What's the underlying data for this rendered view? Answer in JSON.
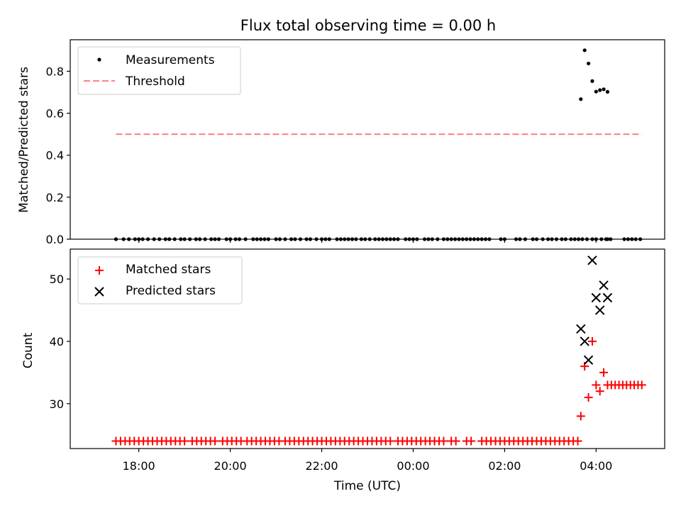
{
  "chart_data": [
    {
      "type": "scatter",
      "title": "Flux total observing time = 0.00 h",
      "xlabel": "",
      "ylabel": "Matched/Predicted stars",
      "ylim": [
        0,
        0.95
      ],
      "yticks": [
        "0.0",
        "0.2",
        "0.4",
        "0.6",
        "0.8"
      ],
      "ytick_values": [
        0,
        0.2,
        0.4,
        0.6,
        0.8
      ],
      "legend_position": "top-left",
      "series": [
        {
          "name": "Measurements",
          "marker": "dot",
          "color": "#000000",
          "x_minutes": [
            1050,
            1060,
            1067,
            1075,
            1080,
            1085,
            1092,
            1100,
            1107,
            1115,
            1120,
            1127,
            1135,
            1140,
            1147,
            1155,
            1160,
            1167,
            1175,
            1180,
            1185,
            1195,
            1200,
            1207,
            1212,
            1220,
            1230,
            1235,
            1240,
            1245,
            1250,
            1260,
            1265,
            1272,
            1280,
            1285,
            1292,
            1300,
            1305,
            1313,
            1320,
            1325,
            1330,
            1340,
            1345,
            1350,
            1355,
            1360,
            1365,
            1372,
            1377,
            1383,
            1390,
            1395,
            1400,
            1405,
            1410,
            1415,
            1420,
            1430,
            1435,
            1440,
            1445,
            1455,
            1460,
            1465,
            1472,
            1480,
            1485,
            1490,
            1495,
            1500,
            1505,
            1510,
            1515,
            1520,
            1525,
            1530,
            1535,
            1540,
            1555,
            1560,
            1575,
            1580,
            1587,
            1597,
            1602,
            1610,
            1617,
            1622,
            1628,
            1635,
            1640,
            1647,
            1652,
            1657,
            1662,
            1668,
            1675,
            1680,
            1687,
            1693,
            1695,
            1699,
            1717,
            1722,
            1727,
            1732,
            1738
          ],
          "y": [
            0,
            0,
            0,
            0,
            0,
            0,
            0,
            0,
            0,
            0,
            0,
            0,
            0,
            0,
            0,
            0,
            0,
            0,
            0,
            0,
            0,
            0,
            0,
            0,
            0,
            0,
            0,
            0,
            0,
            0,
            0,
            0,
            0,
            0,
            0,
            0,
            0,
            0,
            0,
            0,
            0,
            0,
            0,
            0,
            0,
            0,
            0,
            0,
            0,
            0,
            0,
            0,
            0,
            0,
            0,
            0,
            0,
            0,
            0,
            0,
            0,
            0,
            0,
            0,
            0,
            0,
            0,
            0,
            0,
            0,
            0,
            0,
            0,
            0,
            0,
            0,
            0,
            0,
            0,
            0,
            0,
            0,
            0,
            0,
            0,
            0,
            0,
            0,
            0,
            0,
            0,
            0,
            0,
            0,
            0,
            0,
            0,
            0,
            0,
            0,
            0,
            0,
            0,
            0,
            0,
            0,
            0,
            0,
            0
          ]
        },
        {
          "name": "Measurements",
          "marker": "dot",
          "color": "#000000",
          "x_minutes": [
            1660,
            1665,
            1670,
            1675,
            1680,
            1685,
            1690,
            1695
          ],
          "y": [
            0.667,
            0.9,
            0.837,
            0.753,
            0.703,
            0.71,
            0.714,
            0.702
          ]
        },
        {
          "name": "Threshold",
          "marker": "dashed-line",
          "color": "#ff7f7f",
          "x_minutes": [
            1050,
            1740
          ],
          "y": [
            0.5,
            0.5
          ]
        }
      ]
    },
    {
      "type": "scatter",
      "title": "",
      "xlabel": "Time (UTC)",
      "ylabel": "Count",
      "ylim": [
        22.8,
        54.8
      ],
      "yticks": [
        "30",
        "40",
        "50"
      ],
      "ytick_values": [
        30,
        40,
        50
      ],
      "xlim_minutes": [
        990,
        1770
      ],
      "xticks": [
        "18:00",
        "20:00",
        "22:00",
        "00:00",
        "02:00",
        "04:00"
      ],
      "xtick_minutes": [
        1080,
        1200,
        1320,
        1440,
        1560,
        1680
      ],
      "legend_position": "top-left",
      "series": [
        {
          "name": "Matched stars",
          "marker": "plus",
          "color": "#ff0000",
          "x_minutes": [
            1050,
            1056,
            1062,
            1068,
            1074,
            1080,
            1086,
            1092,
            1098,
            1104,
            1110,
            1116,
            1122,
            1128,
            1134,
            1140,
            1150,
            1156,
            1162,
            1168,
            1174,
            1180,
            1190,
            1196,
            1202,
            1208,
            1214,
            1222,
            1228,
            1234,
            1240,
            1246,
            1252,
            1258,
            1264,
            1272,
            1278,
            1284,
            1290,
            1296,
            1302,
            1308,
            1314,
            1320,
            1326,
            1332,
            1338,
            1344,
            1350,
            1356,
            1362,
            1368,
            1374,
            1380,
            1386,
            1392,
            1398,
            1404,
            1410,
            1420,
            1426,
            1432,
            1438,
            1444,
            1450,
            1456,
            1462,
            1468,
            1474,
            1480,
            1490,
            1496,
            1510,
            1516,
            1530,
            1536,
            1542,
            1548,
            1554,
            1560,
            1566,
            1572,
            1578,
            1584,
            1590,
            1596,
            1602,
            1608,
            1614,
            1620,
            1626,
            1632,
            1638,
            1644,
            1650,
            1656
          ],
          "y": [
            24,
            24,
            24,
            24,
            24,
            24,
            24,
            24,
            24,
            24,
            24,
            24,
            24,
            24,
            24,
            24,
            24,
            24,
            24,
            24,
            24,
            24,
            24,
            24,
            24,
            24,
            24,
            24,
            24,
            24,
            24,
            24,
            24,
            24,
            24,
            24,
            24,
            24,
            24,
            24,
            24,
            24,
            24,
            24,
            24,
            24,
            24,
            24,
            24,
            24,
            24,
            24,
            24,
            24,
            24,
            24,
            24,
            24,
            24,
            24,
            24,
            24,
            24,
            24,
            24,
            24,
            24,
            24,
            24,
            24,
            24,
            24,
            24,
            24,
            24,
            24,
            24,
            24,
            24,
            24,
            24,
            24,
            24,
            24,
            24,
            24,
            24,
            24,
            24,
            24,
            24,
            24,
            24,
            24,
            24,
            24
          ]
        },
        {
          "name": "Matched stars",
          "marker": "plus",
          "color": "#ff0000",
          "x_minutes": [
            1660,
            1665,
            1670,
            1675,
            1680,
            1685,
            1690,
            1695,
            1700,
            1705,
            1710,
            1715,
            1720,
            1725,
            1730,
            1735,
            1740
          ],
          "y": [
            28,
            36,
            31,
            40,
            33,
            32,
            35,
            33,
            33,
            33,
            33,
            33,
            33,
            33,
            33,
            33,
            33
          ]
        },
        {
          "name": "Predicted stars",
          "marker": "x",
          "color": "#000000",
          "x_minutes": [
            1660,
            1665,
            1670,
            1675,
            1680,
            1685,
            1690,
            1695
          ],
          "y": [
            42,
            40,
            37,
            53,
            47,
            45,
            49,
            47
          ]
        }
      ]
    }
  ]
}
